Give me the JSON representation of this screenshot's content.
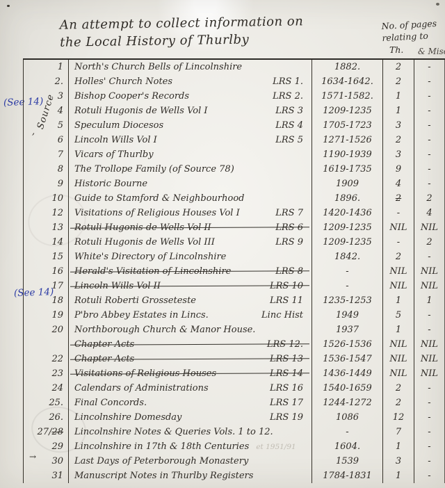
{
  "document": {
    "title_line1": "An attempt to collect information on",
    "title_line2": "the Local History of Thurlby",
    "pages_header": {
      "line1": "No. of pages",
      "line2": "relating to",
      "col_th": "Th.",
      "col_misc": "& Misc"
    },
    "margin": {
      "source_label": "Source",
      "see_ref_row4": "(See 14)",
      "see_ref_row18": "(See 14)",
      "row6_mark": ",",
      "row30_mark": "→"
    },
    "colors": {
      "ink": "#2f2b26",
      "annotation_blue": "#2c3ba4",
      "paper": "#efede6"
    }
  },
  "table": {
    "rows": [
      {
        "num": "1",
        "title": "North's Church Bells of Lincolnshire",
        "lrs": "",
        "date": "1882.",
        "th": "2",
        "misc": "-"
      },
      {
        "num": "2.",
        "title": "Holles' Church Notes",
        "lrs": "LRS 1.",
        "date": "1634-1642.",
        "th": "2",
        "misc": "-"
      },
      {
        "num": "3",
        "title": "Bishop Cooper's Records",
        "lrs": "LRS 2.",
        "date": "1571-1582.",
        "th": "1",
        "misc": "-"
      },
      {
        "num": "4",
        "title": "Rotuli Hugonis de Wells Vol I",
        "lrs": "LRS 3",
        "date": "1209-1235",
        "th": "1",
        "misc": "-"
      },
      {
        "num": "5",
        "title": "Speculum Diocesos",
        "lrs": "LRS 4",
        "date": "1705-1723",
        "th": "3",
        "misc": "-"
      },
      {
        "num": "6",
        "title": "Lincoln Wills Vol I",
        "lrs": "LRS 5",
        "date": "1271-1526",
        "th": "2",
        "misc": "-"
      },
      {
        "num": "7",
        "title": "Vicars of Thurlby",
        "lrs": "",
        "date": "1190-1939",
        "th": "3",
        "misc": "-"
      },
      {
        "num": "8",
        "title": "The Trollope Family (of Source 78)",
        "lrs": "",
        "date": "1619-1735",
        "th": "9",
        "misc": "-"
      },
      {
        "num": "9",
        "title": "Historic Bourne",
        "lrs": "",
        "date": "1909",
        "th": "4",
        "misc": "-"
      },
      {
        "num": "10",
        "title": "Guide to Stamford & Neighbourhood",
        "lrs": "",
        "date": "1896.",
        "th": "2",
        "th_struck": true,
        "misc": "2"
      },
      {
        "num": "12",
        "title": "Visitations of Religious Houses Vol I",
        "lrs": "LRS 7",
        "date": "1420-1436",
        "th": "-",
        "misc": "4"
      },
      {
        "num": "13",
        "title": "Rotuli Hugonis de Wells Vol II",
        "lrs": "LRS 6",
        "date": "1209-1235",
        "th": "NIL",
        "misc": "NIL",
        "struck": true
      },
      {
        "num": "14",
        "title": "Rotuli Hugonis de Wells Vol III",
        "lrs": "LRS 9",
        "date": "1209-1235",
        "th": "-",
        "misc": "2"
      },
      {
        "num": "15",
        "title": "White's Directory of Lincolnshire",
        "lrs": "",
        "date": "1842.",
        "th": "2",
        "misc": "-"
      },
      {
        "num": "16",
        "title": "Herald's Visitation of Lincolnshire",
        "lrs": "LRS 8",
        "date": "-",
        "th": "NIL",
        "misc": "NIL",
        "struck": true
      },
      {
        "num": "17",
        "title": "Lincoln Wills Vol II",
        "lrs": "LRS 10",
        "date": "-",
        "th": "NIL",
        "misc": "NIL",
        "struck": true
      },
      {
        "num": "18",
        "title": "Rotuli Roberti Grosseteste",
        "lrs": "LRS 11",
        "date": "1235-1253",
        "th": "1",
        "misc": "1"
      },
      {
        "num": "19",
        "title": "P'bro Abbey Estates in Lincs.",
        "lrs": "Linc Hist",
        "date": "1949",
        "th": "5",
        "misc": "-"
      },
      {
        "num": "20",
        "title": "Northborough Church & Manor House.",
        "lrs": "",
        "date": "1937",
        "th": "1",
        "misc": "-"
      },
      {
        "num": "",
        "title": "Chapter Acts",
        "lrs": "LRS 12.",
        "date": "1526-1536",
        "th": "NIL",
        "misc": "NIL",
        "struck": true
      },
      {
        "num": "22",
        "title": "Chapter Acts",
        "lrs": "LRS 13",
        "date": "1536-1547",
        "th": "NIL",
        "misc": "NIL",
        "struck": true
      },
      {
        "num": "23",
        "title": "Visitations of Religious Houses",
        "lrs": "LRS 14",
        "date": "1436-1449",
        "th": "NIL",
        "misc": "NIL",
        "struck": true
      },
      {
        "num": "24",
        "title": "Calendars of Administrations",
        "lrs": "LRS 16",
        "date": "1540-1659",
        "th": "2",
        "misc": "-"
      },
      {
        "num": "25.",
        "title": "Final Concords.",
        "lrs": "LRS 17",
        "date": "1244-1272",
        "th": "2",
        "misc": "-"
      },
      {
        "num": "26.",
        "title": "Lincolnshire Domesday",
        "lrs": "LRS 19",
        "date": "1086",
        "th": "12",
        "misc": "-"
      },
      {
        "num": "27/",
        "num_struck": "28",
        "title": "Lincolnshire Notes & Queries Vols. 1 to 12.",
        "lrs": "",
        "date": "-",
        "th": "7",
        "misc": "-"
      },
      {
        "num": "29",
        "title": "Lincolnshire in 17th & 18th Centuries",
        "lrs": "",
        "note": "et 1951/91",
        "date": "1604.",
        "th": "1",
        "misc": "-"
      },
      {
        "num": "30",
        "title": "Last Days of Peterborough Monastery",
        "lrs": "",
        "date": "1539",
        "th": "3",
        "misc": "-"
      },
      {
        "num": "31",
        "title": "Manuscript Notes in Thurlby Registers",
        "lrs": "",
        "date": "1784-1831",
        "th": "1",
        "misc": "-"
      }
    ]
  }
}
